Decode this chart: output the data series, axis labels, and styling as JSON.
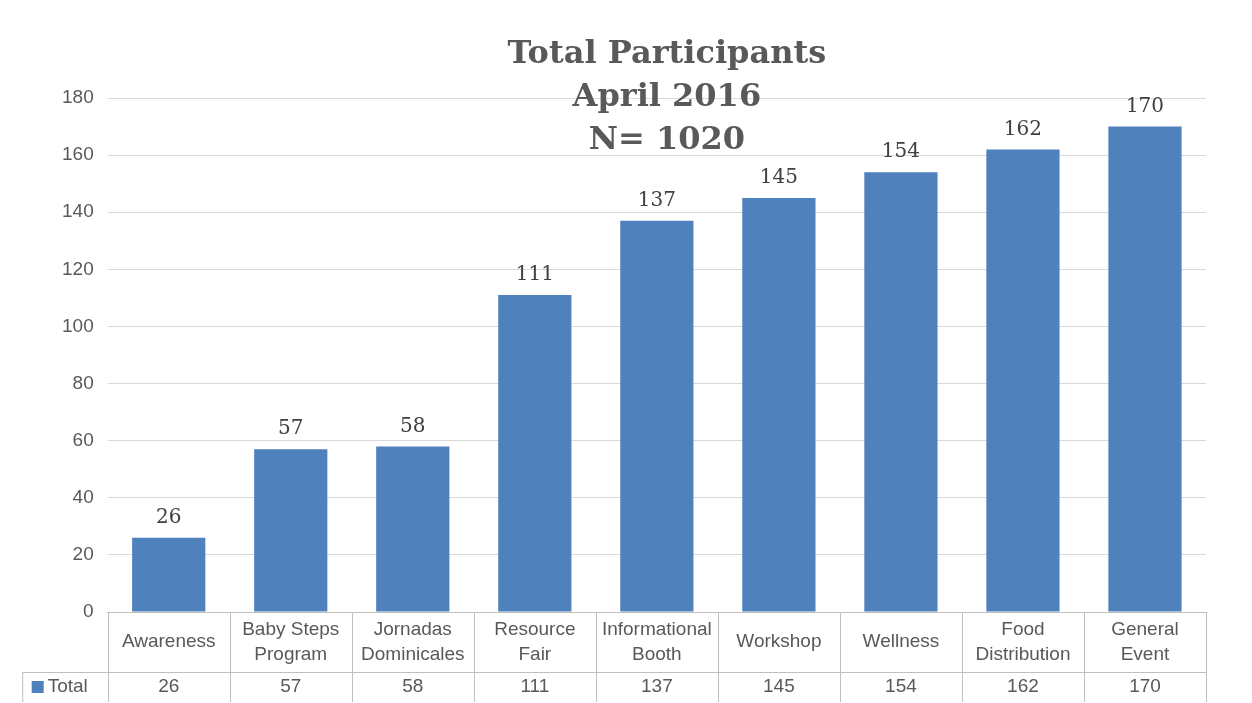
{
  "chart_data": {
    "type": "bar",
    "title": "Total Participants\nApril 2016\nN= 1020",
    "categories": [
      "Awareness",
      "Baby Steps Program",
      "Jornadas Dominicales",
      "Resource Fair",
      "Informational Booth",
      "Workshop",
      "Wellness",
      "Food Distribution",
      "General Event"
    ],
    "series": [
      {
        "name": "Total",
        "color": "#4f81bd",
        "values": [
          26,
          57,
          58,
          111,
          137,
          145,
          154,
          162,
          170
        ],
        "value_labels": [
          "26",
          "57",
          "58",
          "111",
          "137",
          "145",
          "154",
          "162",
          "170"
        ]
      }
    ],
    "ylim": [
      0,
      180
    ],
    "yticks": [
      0,
      20,
      40,
      60,
      80,
      100,
      120,
      140,
      160,
      180
    ],
    "grid": "y",
    "legend": "bottom",
    "annotations": [
      "26",
      "57",
      "58",
      "111",
      "137",
      "145",
      "154",
      "162",
      "170"
    ]
  }
}
